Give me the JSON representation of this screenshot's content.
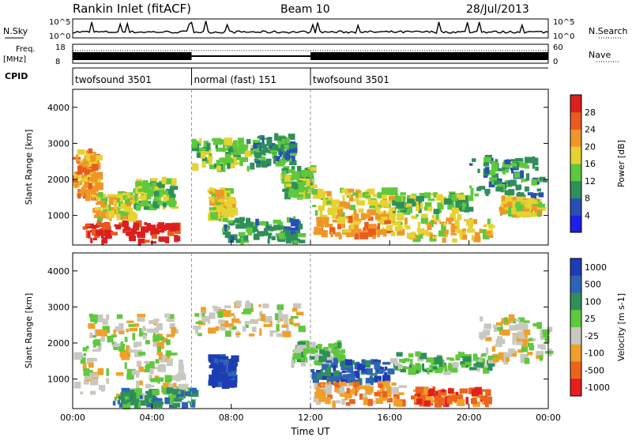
{
  "header": {
    "station": "Rankin Inlet (fitACF)",
    "beam": "Beam 10",
    "date": "28/Jul/2013"
  },
  "summary": {
    "nsky_label": "N.Sky",
    "nsky_ticks": [
      "10^5",
      "10^0"
    ],
    "nsearch_label": "N.Search",
    "nsearch_ticks": [
      "10^5",
      "10^0"
    ],
    "freq_label": "Freq.",
    "freq_unit": "[MHz]",
    "freq_ticks": [
      "18",
      "8"
    ],
    "nave_label": "Nave",
    "nave_ticks": [
      "60",
      "0"
    ],
    "cpid_label": "CPID",
    "cpid_segments": [
      {
        "label": "twofsound 3501",
        "start": 0,
        "end": 6
      },
      {
        "label": "normal (fast) 151",
        "start": 6,
        "end": 12
      },
      {
        "label": "twofsound 3501",
        "start": 12,
        "end": 24
      }
    ]
  },
  "chart_data": [
    {
      "type": "heatmap",
      "quantity": "Power",
      "ylabel": "Slant Range [km]",
      "xlabel": "Time UT",
      "xlim": [
        0,
        24
      ],
      "ylim": [
        180,
        4500
      ],
      "xticks": [
        "00:00",
        "04:00",
        "08:00",
        "12:00",
        "16:00",
        "20:00",
        "00:00"
      ],
      "yticks": [
        1000,
        2000,
        3000,
        4000
      ],
      "colorbar": {
        "label": "Power [dB]",
        "ticks": [
          "4",
          "8",
          "12",
          "16",
          "20",
          "24",
          "28"
        ],
        "colors": [
          "#1e1ee6",
          "#2850b4",
          "#2f8f5a",
          "#5fc83c",
          "#e6d232",
          "#f09628",
          "#eb5a1e",
          "#dc1e1e"
        ]
      },
      "regions": [
        {
          "t0": 0.0,
          "t1": 1.2,
          "r0": 1500,
          "r1": 2800,
          "level": 5
        },
        {
          "t0": 0.5,
          "t1": 5.2,
          "r0": 250,
          "r1": 800,
          "level": 7
        },
        {
          "t0": 1.0,
          "t1": 3.0,
          "r0": 900,
          "r1": 1600,
          "level": 4
        },
        {
          "t0": 3.0,
          "t1": 5.0,
          "r0": 1200,
          "r1": 2000,
          "level": 3
        },
        {
          "t0": 6.0,
          "t1": 9.0,
          "r0": 2300,
          "r1": 3100,
          "level": 3
        },
        {
          "t0": 9.0,
          "t1": 11.0,
          "r0": 2400,
          "r1": 3200,
          "level": 2
        },
        {
          "t0": 6.8,
          "t1": 8.0,
          "r0": 900,
          "r1": 1700,
          "level": 4
        },
        {
          "t0": 7.5,
          "t1": 11.5,
          "r0": 250,
          "r1": 900,
          "level": 2
        },
        {
          "t0": 10.5,
          "t1": 12.0,
          "r0": 1500,
          "r1": 2300,
          "level": 3
        },
        {
          "t0": 12.0,
          "t1": 16.0,
          "r0": 1000,
          "r1": 1700,
          "level": 4
        },
        {
          "t0": 12.0,
          "t1": 16.0,
          "r0": 400,
          "r1": 1000,
          "level": 5
        },
        {
          "t0": 16.0,
          "t1": 20.0,
          "r0": 1100,
          "r1": 1600,
          "level": 3
        },
        {
          "t0": 16.0,
          "t1": 21.0,
          "r0": 300,
          "r1": 1000,
          "level": 4
        },
        {
          "t0": 20.0,
          "t1": 23.8,
          "r0": 1500,
          "r1": 2600,
          "level": 2
        },
        {
          "t0": 21.5,
          "t1": 23.5,
          "r0": 1000,
          "r1": 1500,
          "level": 4
        }
      ]
    },
    {
      "type": "heatmap",
      "quantity": "Velocity",
      "ylabel": "Slant Range [km]",
      "xlabel": "Time UT",
      "xlim": [
        0,
        24
      ],
      "ylim": [
        180,
        4500
      ],
      "xticks": [
        "00:00",
        "04:00",
        "08:00",
        "12:00",
        "16:00",
        "20:00",
        "00:00"
      ],
      "yticks": [
        1000,
        2000,
        3000,
        4000
      ],
      "colorbar": {
        "label": "Velocity [m s-1]",
        "ticks": [
          "1000",
          "500",
          "100",
          "25",
          "-25",
          "-100",
          "-500",
          "-1000"
        ],
        "colors": [
          "#1e3cb4",
          "#2d64b4",
          "#2f8f5a",
          "#5fc83c",
          "#c8c8c0",
          "#f0a028",
          "#eb641e",
          "#e61e1e"
        ]
      },
      "regions": [
        {
          "t0": 0.0,
          "t1": 5.5,
          "r0": 500,
          "r1": 1700,
          "level": 4
        },
        {
          "t0": 0.5,
          "t1": 5.0,
          "r0": 1700,
          "r1": 2800,
          "level": 4
        },
        {
          "t0": 6.0,
          "t1": 11.5,
          "r0": 2200,
          "r1": 3100,
          "level": 4
        },
        {
          "t0": 6.8,
          "t1": 8.0,
          "r0": 800,
          "r1": 1600,
          "level": 0
        },
        {
          "t0": 2.0,
          "t1": 6.0,
          "r0": 250,
          "r1": 700,
          "level": 2
        },
        {
          "t0": 11.0,
          "t1": 13.5,
          "r0": 1400,
          "r1": 2000,
          "level": 3
        },
        {
          "t0": 12.0,
          "t1": 16.0,
          "r0": 900,
          "r1": 1500,
          "level": 1
        },
        {
          "t0": 12.0,
          "t1": 16.5,
          "r0": 300,
          "r1": 900,
          "level": 5
        },
        {
          "t0": 16.0,
          "t1": 21.0,
          "r0": 1200,
          "r1": 1700,
          "level": 3
        },
        {
          "t0": 17.0,
          "t1": 21.0,
          "r0": 300,
          "r1": 700,
          "level": 6
        },
        {
          "t0": 20.5,
          "t1": 24.0,
          "r0": 1500,
          "r1": 2700,
          "level": 4
        }
      ]
    }
  ]
}
